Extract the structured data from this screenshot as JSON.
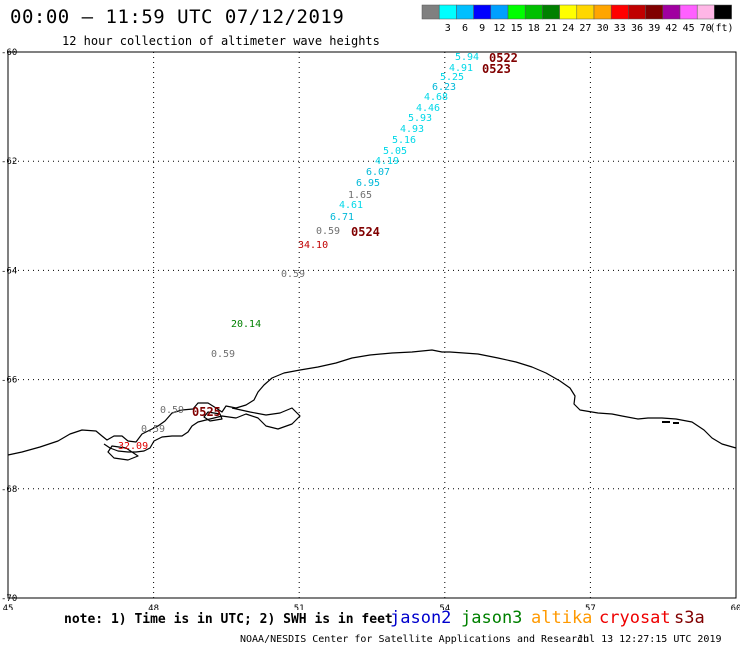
{
  "header": {
    "title": "00:00 – 11:59 UTC 07/12/2019",
    "subtitle": "12 hour collection of altimeter wave heights"
  },
  "legend": {
    "units": "(ft)",
    "boxes": [
      {
        "color": "#808080",
        "label": ""
      },
      {
        "color": "#00ffff",
        "label": "3"
      },
      {
        "color": "#00bfff",
        "label": "6"
      },
      {
        "color": "#0000ff",
        "label": "9"
      },
      {
        "color": "#00a0ff",
        "label": "12"
      },
      {
        "color": "#00ff00",
        "label": "15"
      },
      {
        "color": "#00c000",
        "label": "18"
      },
      {
        "color": "#008000",
        "label": "21"
      },
      {
        "color": "#ffff00",
        "label": "24"
      },
      {
        "color": "#ffd700",
        "label": "27"
      },
      {
        "color": "#ffa500",
        "label": "30"
      },
      {
        "color": "#ff0000",
        "label": "33"
      },
      {
        "color": "#c00000",
        "label": "36"
      },
      {
        "color": "#800000",
        "label": "39"
      },
      {
        "color": "#a000a0",
        "label": "42"
      },
      {
        "color": "#ff60ff",
        "label": "45"
      },
      {
        "color": "#ffb6e6",
        "label": "70"
      },
      {
        "color": "#000000",
        "label": ""
      }
    ]
  },
  "map": {
    "lon_range": [
      45,
      60
    ],
    "lat_range": [
      -70,
      -60
    ],
    "lon_ticks": [
      "45",
      "48",
      "51",
      "54",
      "57",
      "60"
    ],
    "lat_ticks": [
      "-60",
      "-62",
      "-64",
      "-66",
      "-68",
      "-70"
    ]
  },
  "observations": [
    {
      "text": "5.94",
      "color": "#00d8e8"
    },
    {
      "text": "4.91",
      "color": "#00d8e8"
    },
    {
      "text": "5.25",
      "color": "#00d8e8"
    },
    {
      "text": "6.23",
      "color": "#00b8d8"
    },
    {
      "text": "4.68",
      "color": "#00d8e8"
    },
    {
      "text": "4.46",
      "color": "#00d8e8"
    },
    {
      "text": "5.93",
      "color": "#00d8e8"
    },
    {
      "text": "4.93",
      "color": "#00d8e8"
    },
    {
      "text": "5.16",
      "color": "#00d8e8"
    },
    {
      "text": "5.05",
      "color": "#00d8e8"
    },
    {
      "text": "4.19",
      "color": "#00d8e8"
    },
    {
      "text": "6.07",
      "color": "#00b8d8"
    },
    {
      "text": "6.95",
      "color": "#00b8d8"
    },
    {
      "text": "1.65",
      "color": "#707070"
    },
    {
      "text": "4.61",
      "color": "#00d8e8"
    },
    {
      "text": "6.71",
      "color": "#00b8d8"
    },
    {
      "text": "0.59",
      "color": "#707070"
    },
    {
      "text": "34.10",
      "color": "#c00000"
    },
    {
      "text": "0.59",
      "color": "#707070"
    },
    {
      "text": "20.14",
      "color": "#008000"
    },
    {
      "text": "0.59",
      "color": "#707070"
    },
    {
      "text": "0.59",
      "color": "#707070"
    },
    {
      "text": "0.59",
      "color": "#707070"
    },
    {
      "text": "32.09",
      "color": "#e00000"
    }
  ],
  "times": [
    {
      "text": "0522",
      "color": "#800000"
    },
    {
      "text": "0523",
      "color": "#800000"
    },
    {
      "text": "0524",
      "color": "#800000"
    },
    {
      "text": "0525",
      "color": "#800000"
    }
  ],
  "footer": {
    "note": "note:  1) Time is in UTC;  2) SWH is in feet",
    "satellites": [
      {
        "name": "jason2",
        "color": "#0000cc"
      },
      {
        "name": "jason3",
        "color": "#008000"
      },
      {
        "name": "altika",
        "color": "#ff9900"
      },
      {
        "name": "cryosat",
        "color": "#ee0000"
      },
      {
        "name": "s3a",
        "color": "#800000"
      }
    ],
    "credit": "NOAA/NESDIS Center for Satellite Applications and Research",
    "timestamp": "Jul 13 12:27:15 UTC 2019"
  }
}
